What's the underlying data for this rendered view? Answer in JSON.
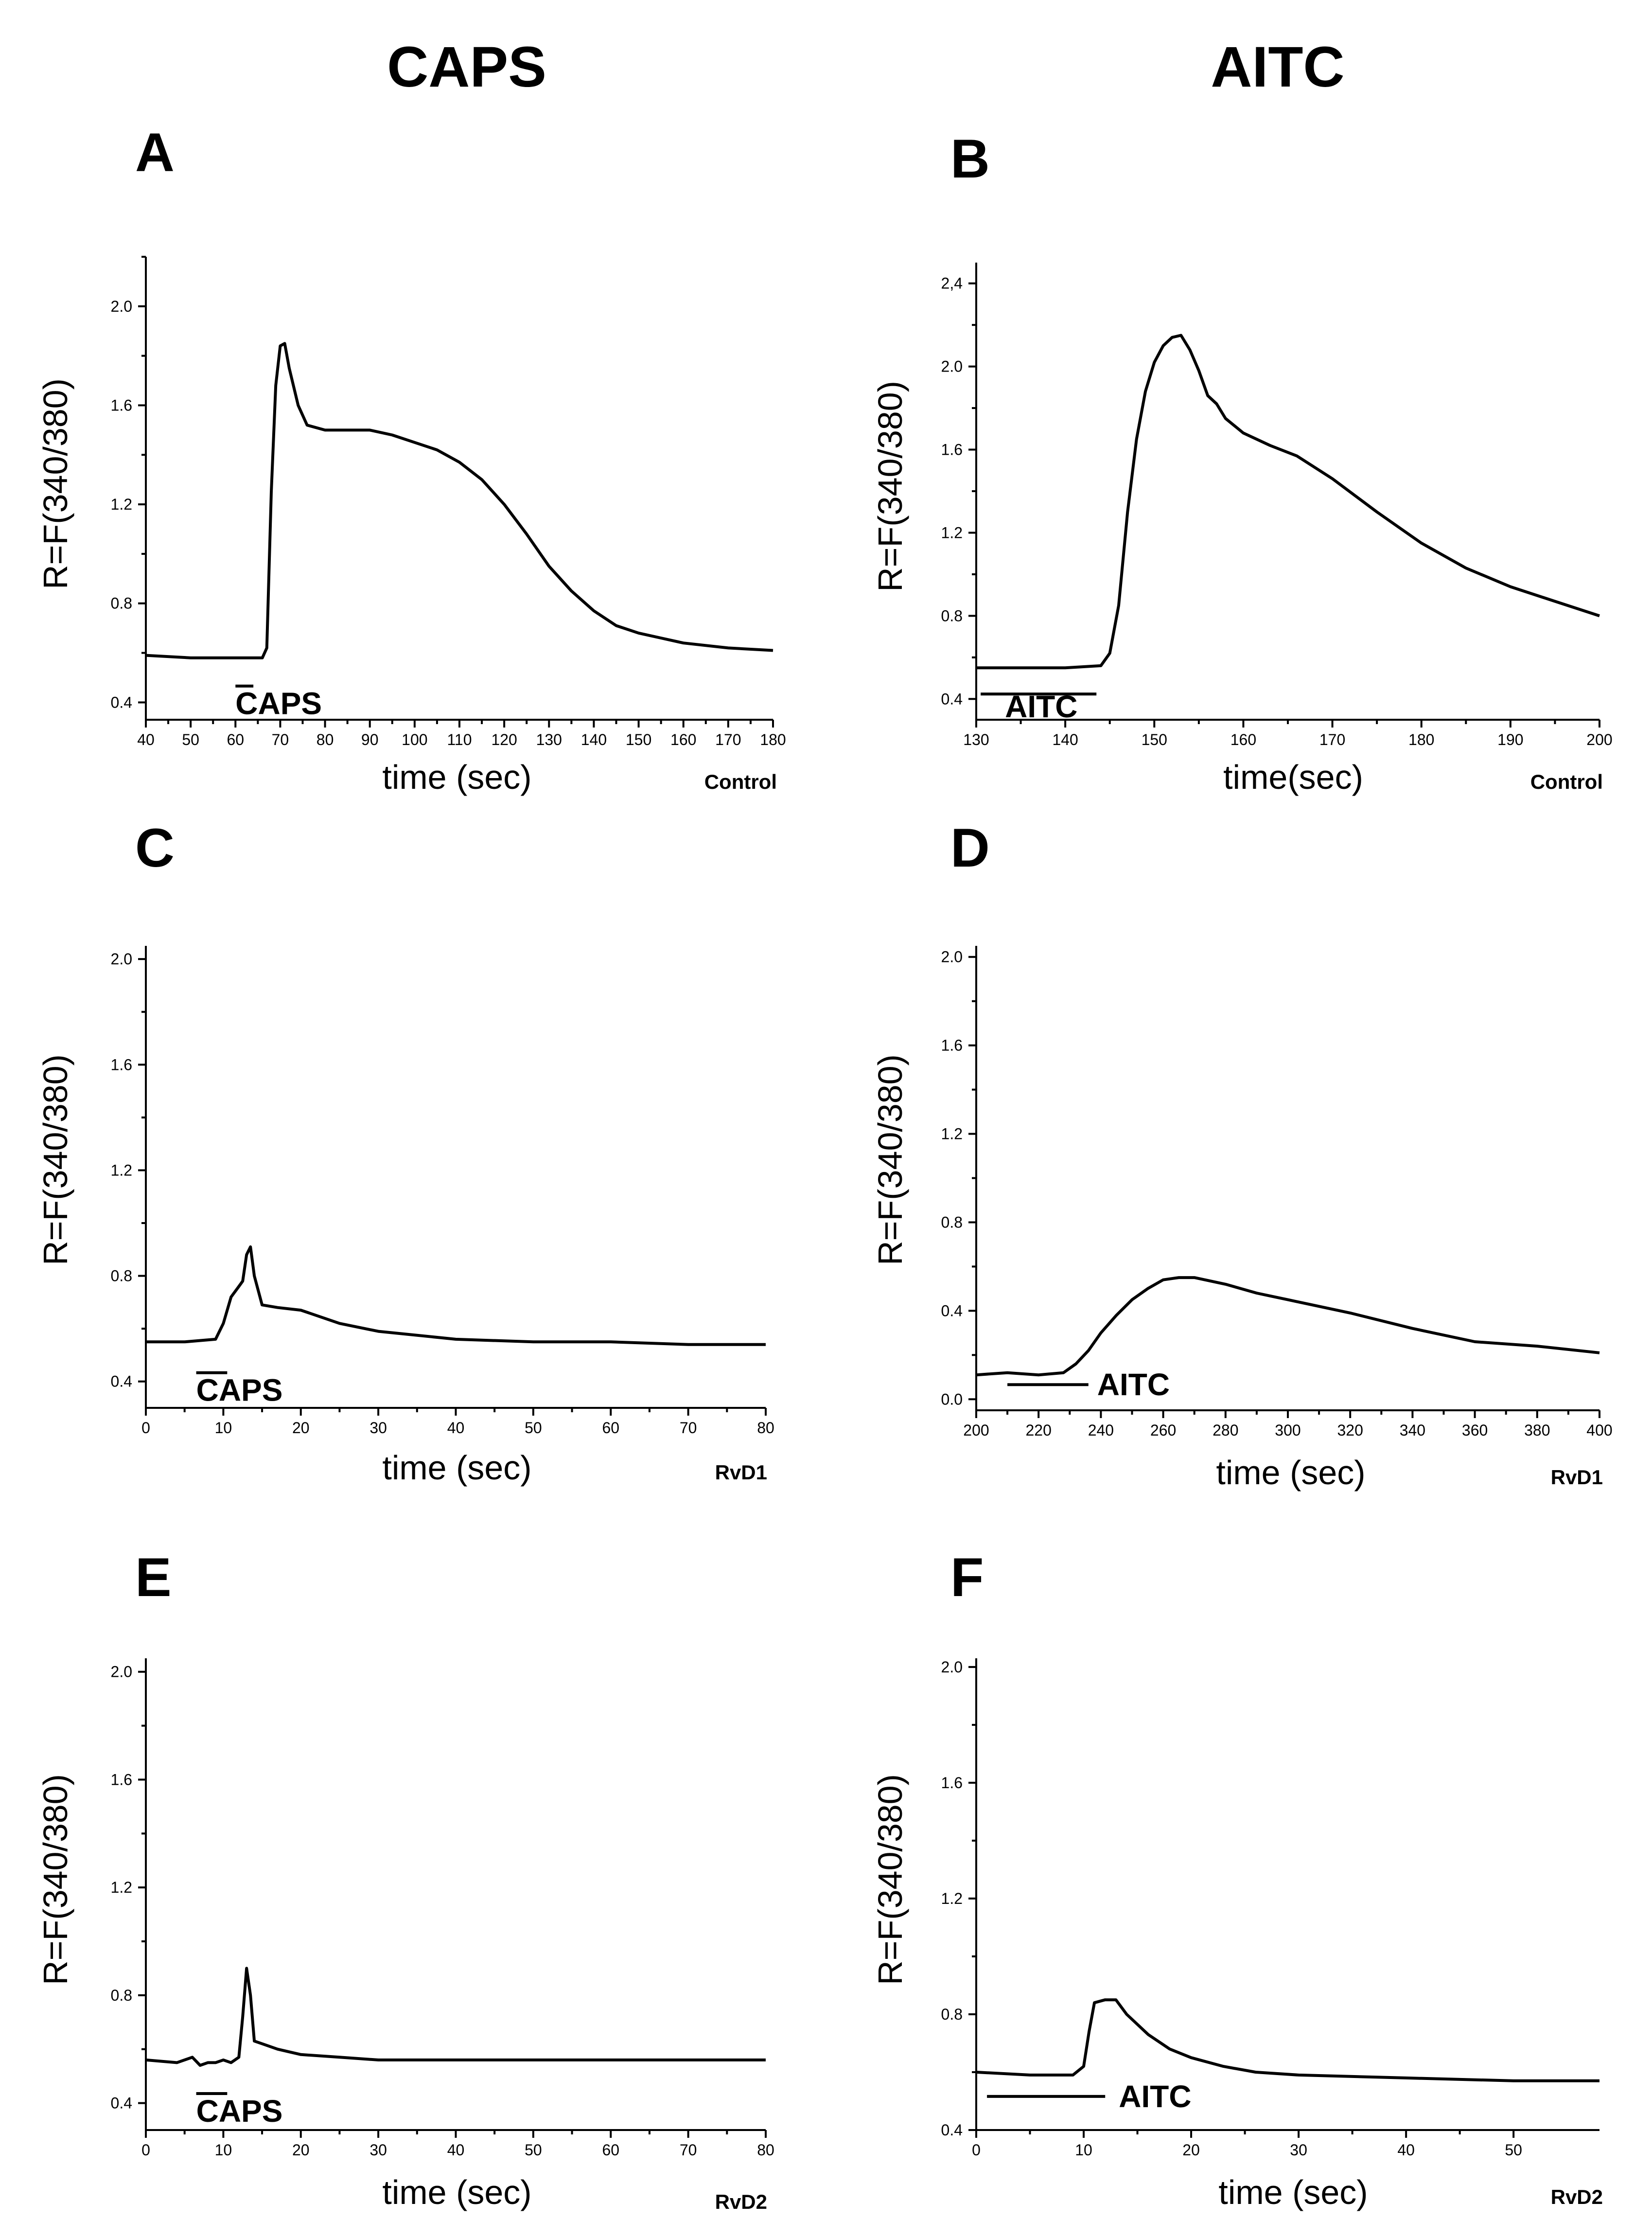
{
  "figure": {
    "column_titles": [
      "CAPS",
      "AITC"
    ]
  },
  "chart_data": [
    {
      "panel": "A",
      "type": "line",
      "condition": "Control",
      "stimulus": "CAPS",
      "stimulus_window": [
        60,
        64
      ],
      "xlabel": "time (sec)",
      "ylabel": "R=F(340/380)",
      "xlim": [
        40,
        180
      ],
      "ylim": [
        0.33,
        2.2
      ],
      "xticks": [
        40,
        50,
        60,
        70,
        80,
        90,
        100,
        110,
        120,
        130,
        140,
        150,
        160,
        170,
        180
      ],
      "xtick_labels": [
        "40",
        "50",
        "60",
        "70",
        "80",
        "90",
        "100",
        "110",
        "120",
        "130",
        "140",
        "150",
        "160",
        "170",
        "180"
      ],
      "yticks": [
        0.4,
        0.8,
        1.2,
        1.6,
        2.0
      ],
      "ytick_labels": [
        "0.4",
        "0.8",
        "1.2",
        "1.6",
        "2.0"
      ],
      "series": [
        {
          "name": "Control",
          "x": [
            40,
            50,
            60,
            66,
            67,
            68,
            69,
            70,
            71,
            72,
            74,
            76,
            80,
            85,
            90,
            95,
            100,
            105,
            110,
            115,
            120,
            125,
            130,
            135,
            140,
            145,
            150,
            155,
            160,
            170,
            180
          ],
          "y": [
            0.59,
            0.58,
            0.58,
            0.58,
            0.62,
            1.25,
            1.68,
            1.84,
            1.85,
            1.75,
            1.6,
            1.52,
            1.5,
            1.5,
            1.5,
            1.48,
            1.45,
            1.42,
            1.37,
            1.3,
            1.2,
            1.08,
            0.95,
            0.85,
            0.77,
            0.71,
            0.68,
            0.66,
            0.64,
            0.62,
            0.61
          ]
        }
      ]
    },
    {
      "panel": "B",
      "type": "line",
      "condition": "Control",
      "stimulus": "AITC",
      "stimulus_window": [
        130.5,
        143.5
      ],
      "xlabel": "time(sec)",
      "ylabel": "R=F(340/380)",
      "xlim": [
        130,
        200
      ],
      "ylim": [
        0.3,
        2.5
      ],
      "xticks": [
        130,
        140,
        150,
        160,
        170,
        180,
        190,
        200
      ],
      "xtick_labels": [
        "130",
        "140",
        "150",
        "160",
        "170",
        "180",
        "190",
        "200"
      ],
      "yticks": [
        0.4,
        0.8,
        1.2,
        1.6,
        2.0,
        2.4
      ],
      "ytick_labels": [
        "0.4",
        "0.8",
        "1.2",
        "1.6",
        "2.0",
        "2,4"
      ],
      "series": [
        {
          "name": "Control",
          "x": [
            130,
            135,
            140,
            144,
            145,
            146,
            147,
            148,
            149,
            150,
            151,
            152,
            153,
            154,
            155,
            156,
            157,
            158,
            160,
            163,
            166,
            170,
            175,
            180,
            185,
            190,
            195,
            200
          ],
          "y": [
            0.55,
            0.55,
            0.55,
            0.56,
            0.62,
            0.85,
            1.3,
            1.65,
            1.88,
            2.02,
            2.1,
            2.14,
            2.15,
            2.08,
            1.98,
            1.86,
            1.82,
            1.75,
            1.68,
            1.62,
            1.57,
            1.46,
            1.3,
            1.15,
            1.03,
            0.94,
            0.87,
            0.8
          ]
        }
      ]
    },
    {
      "panel": "C",
      "type": "line",
      "condition": "RvD1",
      "stimulus": "CAPS",
      "stimulus_window": [
        6.5,
        10.5
      ],
      "xlabel": "time (sec)",
      "ylabel": "R=F(340/380)",
      "xlim": [
        0,
        80
      ],
      "ylim": [
        0.3,
        2.05
      ],
      "xticks": [
        0,
        10,
        20,
        30,
        40,
        50,
        60,
        70,
        80
      ],
      "xtick_labels": [
        "0",
        "10",
        "20",
        "30",
        "40",
        "50",
        "60",
        "70",
        "80"
      ],
      "yticks": [
        0.4,
        0.8,
        1.2,
        1.6,
        2.0
      ],
      "ytick_labels": [
        "0.4",
        "0.8",
        "1.2",
        "1.6",
        "2.0"
      ],
      "series": [
        {
          "name": "RvD1",
          "x": [
            0,
            5,
            9,
            10,
            11,
            12,
            12.5,
            13,
            13.5,
            14,
            15,
            17,
            20,
            25,
            30,
            40,
            50,
            60,
            70,
            80
          ],
          "y": [
            0.55,
            0.55,
            0.56,
            0.62,
            0.72,
            0.76,
            0.78,
            0.88,
            0.91,
            0.8,
            0.69,
            0.68,
            0.67,
            0.62,
            0.59,
            0.56,
            0.55,
            0.55,
            0.54,
            0.54
          ]
        }
      ]
    },
    {
      "panel": "D",
      "type": "line",
      "condition": "RvD1",
      "stimulus": "AITC",
      "stimulus_window": [
        210,
        236
      ],
      "xlabel": "time (sec)",
      "ylabel": "R=F(340/380)",
      "xlim": [
        200,
        400
      ],
      "ylim": [
        -0.05,
        2.05
      ],
      "xticks": [
        200,
        220,
        240,
        260,
        280,
        300,
        320,
        340,
        360,
        380,
        400
      ],
      "xtick_labels": [
        "200",
        "220",
        "240",
        "260",
        "280",
        "300",
        "320",
        "340",
        "360",
        "380",
        "400"
      ],
      "yticks": [
        0.0,
        0.4,
        0.8,
        1.2,
        1.6,
        2.0
      ],
      "ytick_labels": [
        "0.0",
        "0.4",
        "0.8",
        "1.2",
        "1.6",
        "2.0"
      ],
      "series": [
        {
          "name": "RvD1",
          "x": [
            200,
            210,
            220,
            228,
            232,
            236,
            240,
            245,
            250,
            255,
            260,
            265,
            270,
            280,
            290,
            300,
            320,
            340,
            360,
            380,
            400
          ],
          "y": [
            0.11,
            0.12,
            0.11,
            0.12,
            0.16,
            0.22,
            0.3,
            0.38,
            0.45,
            0.5,
            0.54,
            0.55,
            0.55,
            0.52,
            0.48,
            0.45,
            0.39,
            0.32,
            0.26,
            0.24,
            0.21
          ]
        }
      ]
    },
    {
      "panel": "E",
      "type": "line",
      "condition": "RvD2",
      "stimulus": "CAPS",
      "stimulus_window": [
        6.5,
        10.5
      ],
      "xlabel": "time (sec)",
      "ylabel": "R=F(340/380)",
      "xlim": [
        0,
        80
      ],
      "ylim": [
        0.3,
        2.05
      ],
      "xticks": [
        0,
        10,
        20,
        30,
        40,
        50,
        60,
        70,
        80
      ],
      "xtick_labels": [
        "0",
        "10",
        "20",
        "30",
        "40",
        "50",
        "60",
        "70",
        "80"
      ],
      "yticks": [
        0.4,
        0.8,
        1.2,
        1.6,
        2.0
      ],
      "ytick_labels": [
        "0.4",
        "0.8",
        "1.2",
        "1.6",
        "2.0"
      ],
      "series": [
        {
          "name": "RvD2",
          "x": [
            0,
            4,
            6,
            7,
            8,
            9,
            10,
            11,
            12,
            12.5,
            13,
            13.5,
            14,
            15,
            17,
            20,
            25,
            30,
            40,
            50,
            60,
            70,
            80
          ],
          "y": [
            0.56,
            0.55,
            0.57,
            0.54,
            0.55,
            0.55,
            0.56,
            0.55,
            0.57,
            0.72,
            0.9,
            0.8,
            0.63,
            0.62,
            0.6,
            0.58,
            0.57,
            0.56,
            0.56,
            0.56,
            0.56,
            0.56,
            0.56
          ]
        }
      ]
    },
    {
      "panel": "F",
      "type": "line",
      "condition": "RvD2",
      "stimulus": "AITC",
      "stimulus_window": [
        1,
        12
      ],
      "xlabel": "time (sec)",
      "ylabel": "R=F(340/380)",
      "xlim": [
        0,
        58
      ],
      "ylim": [
        0.4,
        2.03
      ],
      "xticks": [
        0,
        10,
        20,
        30,
        40,
        50
      ],
      "xtick_labels": [
        "0",
        "10",
        "20",
        "30",
        "40",
        "50"
      ],
      "yticks": [
        0.4,
        0.8,
        1.2,
        1.6,
        2.0
      ],
      "ytick_labels": [
        "0.4",
        "0.8",
        "1.2",
        "1.6",
        "2.0"
      ],
      "series": [
        {
          "name": "RvD2",
          "x": [
            0,
            5,
            9,
            10,
            10.5,
            11,
            12,
            13,
            14,
            16,
            18,
            20,
            23,
            26,
            30,
            40,
            50,
            58
          ],
          "y": [
            0.6,
            0.59,
            0.59,
            0.62,
            0.74,
            0.84,
            0.85,
            0.85,
            0.8,
            0.73,
            0.68,
            0.65,
            0.62,
            0.6,
            0.59,
            0.58,
            0.57,
            0.57
          ]
        }
      ]
    }
  ]
}
